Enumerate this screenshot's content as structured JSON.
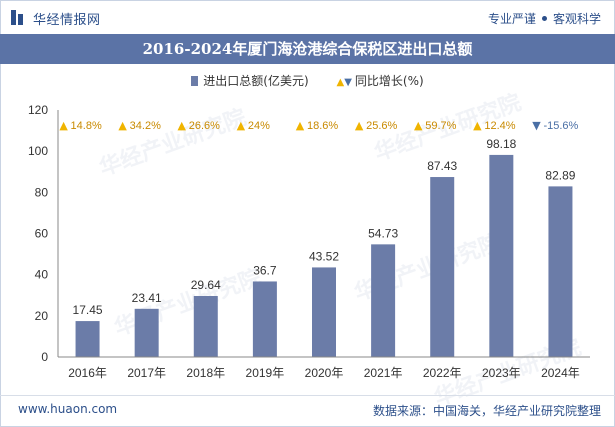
{
  "header": {
    "brand": "华经情报网",
    "tagline_left": "专业严谨",
    "tagline_right": "客观科学"
  },
  "watermark": {
    "cn": "华经产业研究院",
    "url": "www.huaon.com"
  },
  "chart_data": {
    "type": "bar",
    "title": "2016-2024年厦门海沧港综合保税区进出口总额",
    "legend": {
      "bar_label": "进出口总额(亿美元)",
      "growth_label": "同比增长(%)"
    },
    "categories": [
      "2016年",
      "2017年",
      "2018年",
      "2019年",
      "2020年",
      "2021年",
      "2022年",
      "2023年",
      "2024年"
    ],
    "values": [
      17.45,
      23.41,
      29.64,
      36.7,
      43.52,
      54.73,
      87.43,
      98.18,
      82.89
    ],
    "value_labels": [
      "17.45",
      "23.41",
      "29.64",
      "36.7",
      "43.52",
      "54.73",
      "87.43",
      "98.18",
      "82.89"
    ],
    "growth": [
      14.8,
      34.2,
      26.6,
      24,
      18.6,
      25.6,
      59.7,
      12.4,
      -15.6
    ],
    "growth_labels": [
      "14.8%",
      "34.2%",
      "26.6%",
      "24%",
      "18.6%",
      "25.6%",
      "59.7%",
      "12.4%",
      "-15.6%"
    ],
    "y_ticks": [
      "0",
      "20",
      "40",
      "60",
      "80",
      "100",
      "120"
    ],
    "ylim": [
      0,
      120
    ],
    "colors": {
      "bar": "#6b7ca8",
      "up": "#f0b400",
      "down": "#4a6fa5",
      "axis": "#888888"
    }
  },
  "footer": {
    "website": "www.huaon.com",
    "source": "数据来源：中国海关，华经产业研究院整理"
  }
}
